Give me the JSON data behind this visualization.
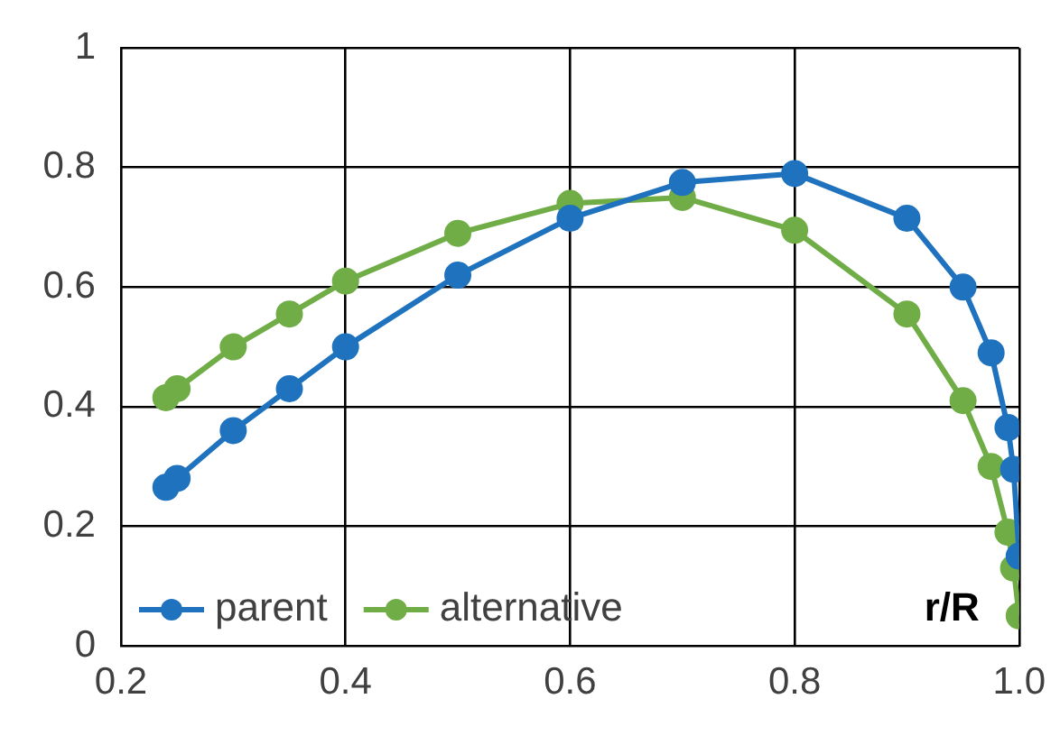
{
  "chart_data": {
    "type": "line",
    "xlabel": "r/R",
    "xlim": [
      0.2,
      1
    ],
    "xticks": [
      0.2,
      0.4,
      0.6,
      0.8,
      {
        "value": 1,
        "label": "1.0"
      }
    ],
    "ylim": [
      0,
      1
    ],
    "yticks": [
      0,
      0.2,
      0.4,
      0.6,
      0.8,
      1
    ],
    "grid": true,
    "legend": "bottom left",
    "marker": "circle",
    "line_style": "solid",
    "series": [
      {
        "name": "parent",
        "color": "#1f72bd",
        "x": [
          0.24,
          0.25,
          0.3,
          0.35,
          0.4,
          0.5,
          0.6,
          0.7,
          0.8,
          0.9,
          0.95,
          0.975,
          0.99,
          0.995,
          1
        ],
        "values": [
          0.265,
          0.28,
          0.36,
          0.43,
          0.5,
          0.62,
          0.715,
          0.775,
          0.79,
          0.715,
          0.6,
          0.49,
          0.365,
          0.295,
          0.15
        ]
      },
      {
        "name": "alternative",
        "color": "#70ad47",
        "x": [
          0.24,
          0.25,
          0.3,
          0.35,
          0.4,
          0.5,
          0.6,
          0.7,
          0.8,
          0.9,
          0.95,
          0.975,
          0.99,
          0.995,
          1
        ],
        "values": [
          0.415,
          0.43,
          0.5,
          0.555,
          0.61,
          0.69,
          0.74,
          0.75,
          0.695,
          0.555,
          0.41,
          0.3,
          0.19,
          0.13,
          0.05
        ]
      }
    ]
  }
}
